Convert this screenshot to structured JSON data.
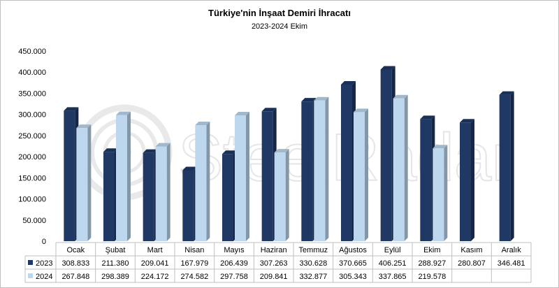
{
  "chart_data": {
    "type": "bar",
    "title": "Türkiye'nin İnşaat Demiri İhracatı",
    "subtitle": "2023-2024 Ekim",
    "watermark": "SteelRadar",
    "categories": [
      "Ocak",
      "Şubat",
      "Mart",
      "Nisan",
      "Mayıs",
      "Haziran",
      "Temmuz",
      "Ağustos",
      "Eylül",
      "Ekim",
      "Kasım",
      "Aralık"
    ],
    "series": [
      {
        "name": "2023",
        "color": "#1f3864",
        "values": [
          308833,
          211380,
          209041,
          167979,
          206439,
          307263,
          330628,
          370665,
          406251,
          288927,
          280807,
          346481
        ],
        "labels": [
          "308.833",
          "211.380",
          "209.041",
          "167.979",
          "206.439",
          "307.263",
          "330.628",
          "370.665",
          "406.251",
          "288.927",
          "280.807",
          "346.481"
        ]
      },
      {
        "name": "2024",
        "color": "#bdd7ee",
        "values": [
          267848,
          298389,
          224172,
          274582,
          297758,
          209841,
          332877,
          305343,
          337865,
          219578,
          null,
          null
        ],
        "labels": [
          "267.848",
          "298.389",
          "224.172",
          "274.582",
          "297.758",
          "209.841",
          "332.877",
          "305.343",
          "337.865",
          "219.578",
          "",
          ""
        ]
      }
    ],
    "ylim": [
      0,
      450000
    ],
    "yticks": [
      0,
      50000,
      100000,
      150000,
      200000,
      250000,
      300000,
      350000,
      400000,
      450000
    ],
    "ytick_labels": [
      "0",
      "50.000",
      "100.000",
      "150.000",
      "200.000",
      "250.000",
      "300.000",
      "350.000",
      "400.000",
      "450.000"
    ],
    "grid": false,
    "legend": "data-table-below"
  }
}
